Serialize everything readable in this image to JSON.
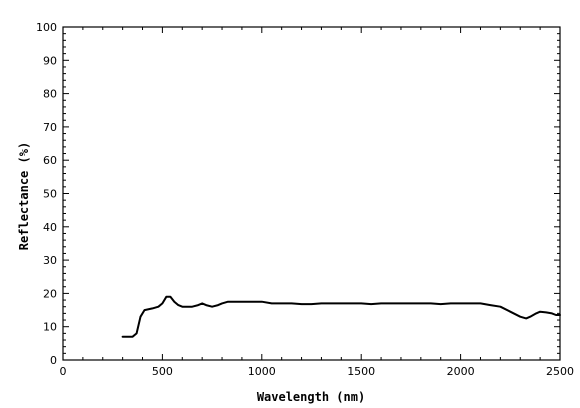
{
  "chart_data": {
    "type": "line",
    "title": "",
    "xlabel": "Wavelength (nm)",
    "ylabel": "Reflectance (%)",
    "xlim": [
      0,
      2500
    ],
    "ylim": [
      0,
      100
    ],
    "x_ticks": [
      0,
      500,
      1000,
      1500,
      2000,
      2500
    ],
    "y_ticks": [
      0,
      10,
      20,
      30,
      40,
      50,
      60,
      70,
      80,
      90,
      100
    ],
    "grid": false,
    "legend": "none",
    "series": [
      {
        "color": "#000000",
        "x": [
          300,
          350,
          370,
          390,
          410,
          450,
          480,
          500,
          520,
          540,
          560,
          580,
          600,
          650,
          680,
          700,
          720,
          750,
          780,
          800,
          830,
          900,
          1000,
          1050,
          1100,
          1150,
          1200,
          1250,
          1300,
          1350,
          1400,
          1450,
          1500,
          1550,
          1600,
          1650,
          1700,
          1750,
          1800,
          1850,
          1900,
          1950,
          2000,
          2050,
          2100,
          2150,
          2200,
          2250,
          2300,
          2330,
          2350,
          2380,
          2400,
          2430,
          2460,
          2480,
          2500
        ],
        "y": [
          7,
          7,
          8,
          13,
          15,
          15.5,
          16,
          17,
          19,
          19,
          17.5,
          16.5,
          16,
          16,
          16.5,
          17,
          16.5,
          16,
          16.5,
          17,
          17.5,
          17.5,
          17.5,
          17,
          17,
          17,
          16.8,
          16.8,
          17,
          17,
          17,
          17,
          17,
          16.8,
          17,
          17,
          17,
          17,
          17,
          17,
          16.8,
          17,
          17,
          17,
          17,
          16.5,
          16,
          14.5,
          13,
          12.5,
          13,
          14,
          14.5,
          14.3,
          14,
          13.5,
          13.5
        ]
      }
    ]
  }
}
